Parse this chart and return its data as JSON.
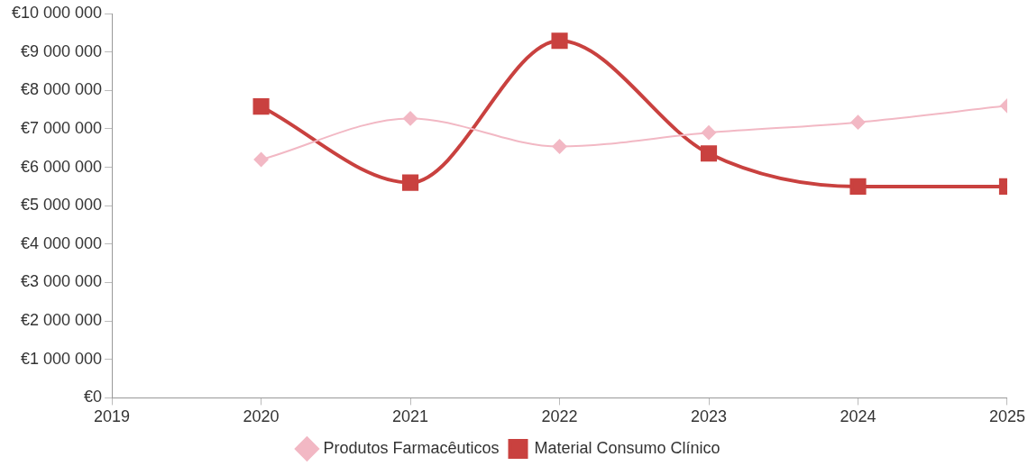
{
  "chart_data": {
    "type": "line",
    "x": [
      2020,
      2021,
      2022,
      2023,
      2024,
      2025
    ],
    "xlim": [
      2019,
      2025
    ],
    "xticks": [
      2019,
      2020,
      2021,
      2022,
      2023,
      2024,
      2025
    ],
    "ylim": [
      0,
      10000000
    ],
    "yticks": [
      {
        "value": 0,
        "label": "€0"
      },
      {
        "value": 1000000,
        "label": "€1 000 000"
      },
      {
        "value": 2000000,
        "label": "€2 000 000"
      },
      {
        "value": 3000000,
        "label": "€3 000 000"
      },
      {
        "value": 4000000,
        "label": "€4 000 000"
      },
      {
        "value": 5000000,
        "label": "€5 000 000"
      },
      {
        "value": 6000000,
        "label": "€6 000 000"
      },
      {
        "value": 7000000,
        "label": "€7 000 000"
      },
      {
        "value": 8000000,
        "label": "€8 000 000"
      },
      {
        "value": 9000000,
        "label": "€9 000 000"
      },
      {
        "value": 10000000,
        "label": "€10 000 000"
      }
    ],
    "series": [
      {
        "name": "Produtos Farmacêuticos",
        "color": "#f2b8c4",
        "marker": "diamond",
        "values": [
          6200000,
          7270000,
          6540000,
          6900000,
          7170000,
          7600000
        ]
      },
      {
        "name": "Material Consumo Clínico",
        "color": "#c9413f",
        "marker": "square",
        "values": [
          7580000,
          5600000,
          9290000,
          6360000,
          5500000,
          5500000
        ]
      }
    ],
    "grid": false,
    "legend": "bottom"
  }
}
